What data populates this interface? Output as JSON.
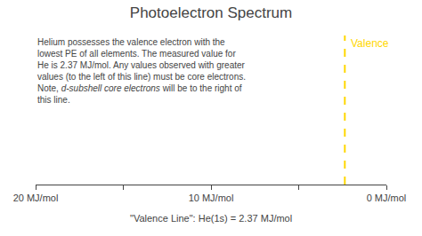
{
  "chart_data": {
    "type": "axis",
    "title": "Photoelectron Spectrum",
    "xlim": [
      20,
      0
    ],
    "xticks": [
      {
        "value": 20,
        "label": "20 MJ/mol"
      },
      {
        "value": 15,
        "label": null
      },
      {
        "value": 10,
        "label": "10 MJ/mol"
      },
      {
        "value": 5,
        "label": null
      },
      {
        "value": 0,
        "label": "0 MJ/mol"
      }
    ],
    "tick_labels": "x",
    "grid": false,
    "markers": [
      {
        "name": "Valence",
        "x": 2.37,
        "color": "#FFD700",
        "line_style": "dashed"
      }
    ],
    "annotations": [
      {
        "segments": [
          {
            "text": "Helium possesses the valence electron with the",
            "italic": false
          }
        ]
      },
      {
        "segments": [
          {
            "text": "lowest PE of all elements. The measured value for",
            "italic": false
          }
        ]
      },
      {
        "segments": [
          {
            "text": "He is 2.37 MJ/mol. Any values observed with greater",
            "italic": false
          }
        ]
      },
      {
        "segments": [
          {
            "text": "values (to the left of this line) must be core electrons.",
            "italic": false
          }
        ]
      },
      {
        "segments": [
          {
            "text": "Note, ",
            "italic": false
          },
          {
            "text": "d-subshell core electrons",
            "italic": true
          },
          {
            "text": " will be to the right of",
            "italic": false
          }
        ]
      },
      {
        "segments": [
          {
            "text": "this line.",
            "italic": false
          }
        ]
      }
    ],
    "footnote": "\"Valence Line\": He(1s) = 2.37 MJ/mol"
  }
}
